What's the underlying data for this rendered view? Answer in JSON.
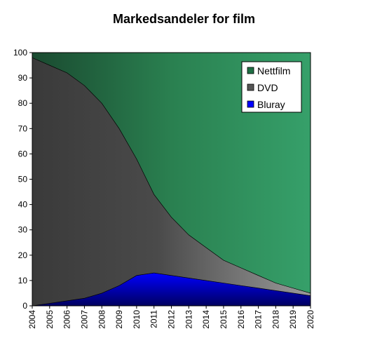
{
  "chart_data": {
    "type": "area",
    "stacked": true,
    "title": "Markedsandeler for film",
    "xlabel": "",
    "ylabel": "",
    "ylim": [
      0,
      100
    ],
    "yticks": [
      0,
      10,
      20,
      30,
      40,
      50,
      60,
      70,
      80,
      90,
      100
    ],
    "categories": [
      "2004",
      "2005",
      "2006",
      "2007",
      "2008",
      "2009",
      "2010",
      "2011",
      "2012",
      "2013",
      "2014",
      "2015",
      "2016",
      "2017",
      "2018",
      "2019",
      "2020"
    ],
    "series": [
      {
        "name": "Bluray",
        "color": "#0000ff",
        "values": [
          0,
          1,
          2,
          3,
          5,
          8,
          12,
          13,
          12,
          11,
          10,
          9,
          8,
          7,
          6,
          5,
          4
        ]
      },
      {
        "name": "DVD",
        "color": "#555555",
        "values": [
          98,
          94,
          90,
          84,
          75,
          62,
          46,
          31,
          23,
          17,
          13,
          9,
          7,
          5,
          3,
          2,
          1
        ]
      },
      {
        "name": "Nettfilm",
        "color": "#2e8b57",
        "values": [
          2,
          5,
          8,
          13,
          20,
          30,
          42,
          56,
          65,
          72,
          77,
          82,
          85,
          88,
          91,
          93,
          95
        ]
      }
    ],
    "legend": {
      "position": "top-right",
      "entries": [
        {
          "label": "Nettfilm",
          "color": "#1f6f44"
        },
        {
          "label": "DVD",
          "color": "#555555"
        },
        {
          "label": "Bluray",
          "color": "#0000ff"
        }
      ]
    },
    "grid": false
  }
}
